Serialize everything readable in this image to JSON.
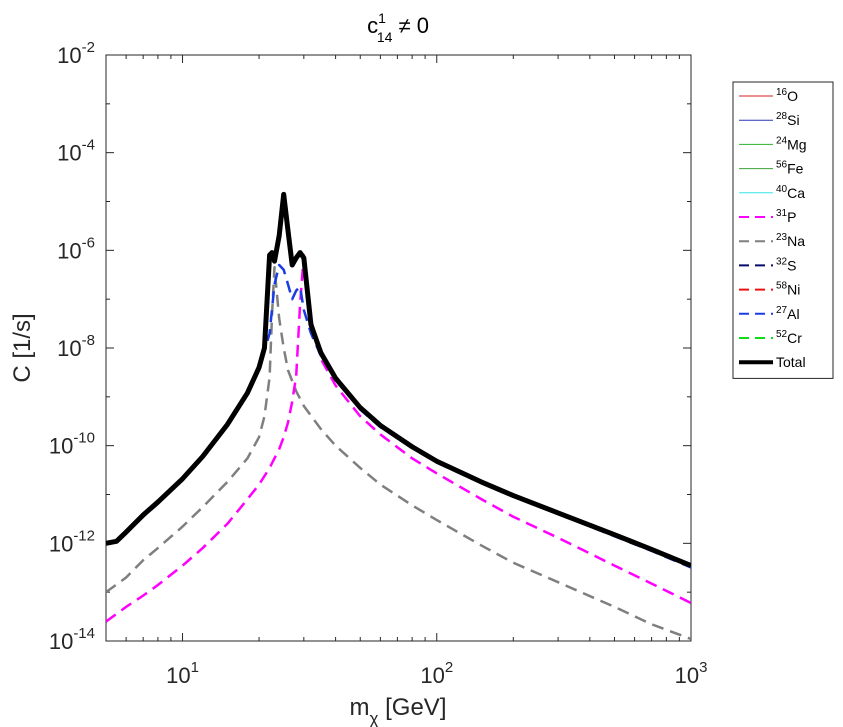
{
  "chart_data": {
    "type": "line",
    "title": {
      "base": "c",
      "sup": "1",
      "sub": "14",
      "suffix": " ≠ 0"
    },
    "xlabel": {
      "base": "m",
      "sub": "χ",
      "suffix": " [GeV]"
    },
    "ylabel": "C [1/s]",
    "xscale": "log",
    "yscale": "log",
    "xlim": [
      5,
      1000
    ],
    "ylim": [
      1e-14,
      0.01
    ],
    "grid": false,
    "legend_position": "outside-right",
    "x_ticks": [
      {
        "value": 10,
        "base": "10",
        "exp": "1"
      },
      {
        "value": 100,
        "base": "10",
        "exp": "2"
      },
      {
        "value": 1000,
        "base": "10",
        "exp": "3"
      }
    ],
    "y_ticks": [
      {
        "value": 1e-14,
        "base": "10",
        "exp": "-14"
      },
      {
        "value": 1e-12,
        "base": "10",
        "exp": "-12"
      },
      {
        "value": 1e-10,
        "base": "10",
        "exp": "-10"
      },
      {
        "value": 1e-08,
        "base": "10",
        "exp": "-8"
      },
      {
        "value": 1e-06,
        "base": "10",
        "exp": "-6"
      },
      {
        "value": 0.0001,
        "base": "10",
        "exp": "-4"
      },
      {
        "value": 0.01,
        "base": "10",
        "exp": "-2"
      }
    ],
    "series": [
      {
        "name": "16O",
        "sup": "16",
        "el": "O",
        "color": "#d62020",
        "dash": false,
        "width": 1,
        "x": [],
        "y": []
      },
      {
        "name": "28Si",
        "sup": "28",
        "el": "Si",
        "color": "#2a35b5",
        "dash": false,
        "width": 1,
        "x": [],
        "y": []
      },
      {
        "name": "24Mg",
        "sup": "24",
        "el": "Mg",
        "color": "#29b229",
        "dash": false,
        "width": 1,
        "x": [],
        "y": []
      },
      {
        "name": "56Fe",
        "sup": "56",
        "el": "Fe",
        "color": "#3aa13a",
        "dash": false,
        "width": 1,
        "x": [],
        "y": []
      },
      {
        "name": "40Ca",
        "sup": "40",
        "el": "Ca",
        "color": "#33e6e6",
        "dash": false,
        "width": 1,
        "x": [],
        "y": []
      },
      {
        "name": "31P",
        "sup": "31",
        "el": "P",
        "color": "#ff00ff",
        "dash": true,
        "width": 2.5,
        "x": [
          5,
          6,
          7,
          8,
          10,
          12,
          15,
          18,
          20,
          22,
          24,
          25,
          26,
          27,
          28,
          29,
          30,
          32,
          35,
          40,
          50,
          60,
          80,
          100,
          150,
          200,
          300,
          500,
          700,
          1000
        ],
        "y": [
          2.5e-14,
          5e-14,
          8.5e-14,
          1.4e-13,
          3.5e-13,
          8e-13,
          2.5e-12,
          8e-12,
          1.6e-11,
          3.5e-11,
          8.5e-11,
          1.5e-10,
          3e-10,
          8e-10,
          2.7e-09,
          8e-08,
          8e-07,
          4e-08,
          6e-09,
          1.7e-09,
          4e-10,
          1.7e-10,
          5.5e-11,
          2.7e-11,
          8e-12,
          3.5e-12,
          1.3e-12,
          3.5e-13,
          1.5e-13,
          6e-14
        ]
      },
      {
        "name": "23Na",
        "sup": "23",
        "el": "Na",
        "color": "#7f7f7f",
        "dash": true,
        "width": 2.5,
        "x": [
          5,
          6,
          7,
          8,
          10,
          12,
          15,
          18,
          20,
          21,
          22,
          22.5,
          23,
          24,
          25,
          26,
          28,
          30,
          35,
          40,
          50,
          60,
          80,
          100,
          150,
          200,
          300,
          500,
          700,
          1000
        ],
        "y": [
          1e-13,
          2e-13,
          4.5e-13,
          8e-13,
          2.2e-12,
          5.5e-12,
          1.8e-11,
          5.5e-11,
          1.5e-10,
          4e-10,
          2.5e-09,
          5e-08,
          4.5e-07,
          4e-08,
          1e-08,
          3.5e-09,
          1.3e-09,
          6.5e-10,
          2.2e-10,
          1e-10,
          3.5e-11,
          1.6e-11,
          6e-12,
          3e-12,
          9e-13,
          4e-13,
          1.6e-13,
          5e-14,
          2.2e-14,
          1.1e-14
        ]
      },
      {
        "name": "32S",
        "sup": "32",
        "el": "S",
        "color": "#0a0a6e",
        "dash": true,
        "width": 2.5,
        "x": [],
        "y": []
      },
      {
        "name": "58Ni",
        "sup": "58",
        "el": "Ni",
        "color": "#ee1111",
        "dash": true,
        "width": 2.5,
        "x": [],
        "y": []
      },
      {
        "name": "27Al",
        "sup": "27",
        "el": "Al",
        "color": "#1a3ce6",
        "dash": true,
        "width": 2.5,
        "x": [
          5,
          5.5,
          6,
          7,
          8,
          10,
          12,
          15,
          18,
          20,
          22,
          23,
          24,
          25,
          26,
          27,
          28,
          29,
          30,
          32,
          35,
          40,
          50,
          60,
          80,
          100,
          150,
          200,
          300,
          500,
          700,
          1000
        ],
        "y": [
          1e-12,
          1.1e-12,
          1.6e-12,
          3.5e-12,
          6.5e-12,
          2e-11,
          5.5e-11,
          2.5e-10,
          1.1e-09,
          3.5e-09,
          2e-08,
          2e-07,
          5e-07,
          4e-07,
          2e-07,
          1e-07,
          1.5e-07,
          1.8e-07,
          6e-08,
          2e-08,
          7e-09,
          2.2e-09,
          5.5e-10,
          2.4e-10,
          9e-11,
          4.5e-11,
          1.7e-11,
          9e-12,
          4e-12,
          1.4e-12,
          7e-13,
          3.2e-13
        ]
      },
      {
        "name": "52Cr",
        "sup": "52",
        "el": "Cr",
        "color": "#11dd11",
        "dash": true,
        "width": 2.5,
        "x": [],
        "y": []
      },
      {
        "name": "Total",
        "sup": "",
        "el": "Total",
        "color": "#000000",
        "dash": false,
        "width": 5,
        "x": [
          5,
          5.5,
          6,
          7,
          8,
          10,
          12,
          15,
          18,
          20,
          21,
          22,
          22.5,
          23,
          24,
          25,
          26,
          27,
          28,
          29,
          30,
          32,
          35,
          40,
          50,
          60,
          80,
          100,
          150,
          200,
          300,
          500,
          700,
          1000
        ],
        "y": [
          1e-12,
          1.1e-12,
          1.7e-12,
          3.8e-12,
          7e-12,
          2.1e-11,
          6e-11,
          2.7e-10,
          1.2e-09,
          4e-09,
          1e-08,
          8e-07,
          9e-07,
          6e-07,
          2e-06,
          1.4e-05,
          2.5e-06,
          5e-07,
          7e-07,
          9e-07,
          7e-07,
          3e-08,
          8e-09,
          2.4e-09,
          6e-10,
          2.6e-10,
          9.5e-11,
          4.8e-11,
          1.8e-11,
          9.5e-12,
          4.2e-12,
          1.5e-12,
          7.5e-13,
          3.5e-13
        ]
      }
    ]
  }
}
